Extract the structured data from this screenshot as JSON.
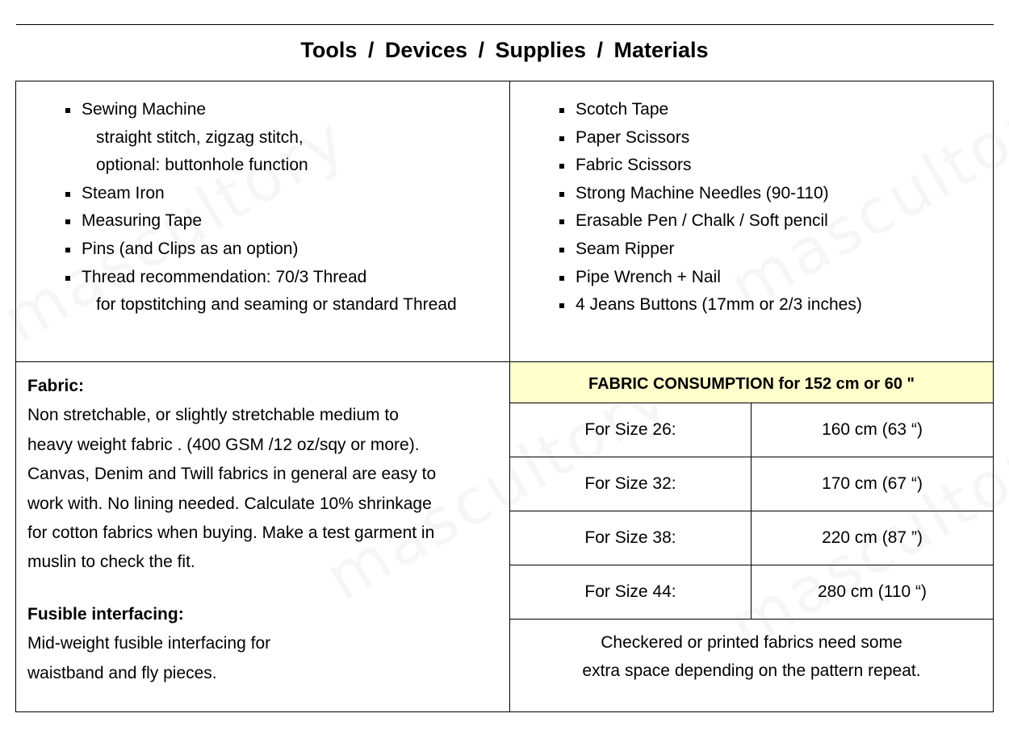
{
  "watermark": "mascultory",
  "title": "Tools  /  Devices  /  Supplies /  Materials",
  "tools_left": [
    {
      "label": "Sewing Machine",
      "sub": [
        "straight stitch, zigzag stitch,",
        "optional: buttonhole function"
      ]
    },
    {
      "label": "Steam Iron",
      "sub": []
    },
    {
      "label": "Measuring Tape",
      "sub": []
    },
    {
      "label": "Pins (and Clips as an option)",
      "sub": []
    },
    {
      "label": "Thread recommendation:  70/3 Thread",
      "sub": [
        "for topstitching and seaming or standard Thread"
      ]
    }
  ],
  "tools_right": [
    "Scotch Tape",
    "Paper Scissors",
    "Fabric Scissors",
    "Strong Machine Needles (90-110)",
    "Erasable Pen / Chalk / Soft pencil",
    "Seam Ripper",
    "Pipe Wrench + Nail",
    "4 Jeans Buttons (17mm or 2/3 inches)"
  ],
  "fabric": {
    "heading": "Fabric:",
    "lines": [
      "Non stretchable, or slightly stretchable medium to",
      "heavy weight fabric . (400 GSM /12 oz/sqy or more).",
      "Canvas, Denim and Twill fabrics in general are easy to",
      "work with. No lining needed. Calculate 10% shrinkage",
      "for cotton fabrics when buying. Make a test garment in",
      "muslin to check the fit."
    ],
    "interfacing_heading": "Fusible interfacing:",
    "interfacing_lines": [
      "Mid-weight fusible interfacing for",
      "waistband and fly pieces."
    ]
  },
  "consumption": {
    "header": "FABRIC CONSUMPTION for 152 cm or 60 \"",
    "header_bg": "#ffffcc",
    "rows": [
      {
        "size": "For Size 26:",
        "amount": "160 cm (63 “)"
      },
      {
        "size": "For Size 32:",
        "amount": "170 cm (67 “)"
      },
      {
        "size": "For Size 38:",
        "amount": "220 cm (87 ”)"
      },
      {
        "size": "For Size 44:",
        "amount": "280 cm (110 “)"
      }
    ],
    "note": [
      "Checkered or printed fabrics need some",
      "extra space depending on the pattern repeat."
    ]
  }
}
